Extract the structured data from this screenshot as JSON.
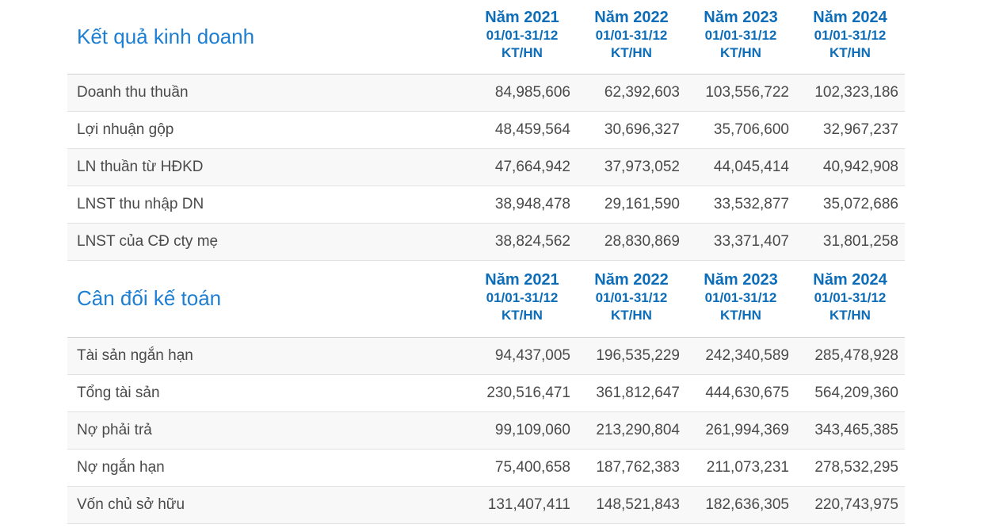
{
  "colors": {
    "section_title_blue": "#1e7fd2",
    "column_header_blue": "#0d6db8",
    "body_text": "#4a4a4a",
    "row_stripe": "#f8f8f8",
    "divider": "#e2e2e2"
  },
  "tables": [
    {
      "title": "Kết quả kinh doanh",
      "columns": [
        {
          "year": "Năm 2021",
          "period": "01/01-31/12",
          "basis": "KT/HN"
        },
        {
          "year": "Năm 2022",
          "period": "01/01-31/12",
          "basis": "KT/HN"
        },
        {
          "year": "Năm 2023",
          "period": "01/01-31/12",
          "basis": "KT/HN"
        },
        {
          "year": "Năm 2024",
          "period": "01/01-31/12",
          "basis": "KT/HN"
        }
      ],
      "rows": [
        {
          "label": "Doanh thu thuần",
          "values": [
            "84,985,606",
            "62,392,603",
            "103,556,722",
            "102,323,186"
          ]
        },
        {
          "label": "Lợi nhuận gộp",
          "values": [
            "48,459,564",
            "30,696,327",
            "35,706,600",
            "32,967,237"
          ]
        },
        {
          "label": "LN thuần từ HĐKD",
          "values": [
            "47,664,942",
            "37,973,052",
            "44,045,414",
            "40,942,908"
          ]
        },
        {
          "label": "LNST thu nhập DN",
          "values": [
            "38,948,478",
            "29,161,590",
            "33,532,877",
            "35,072,686"
          ]
        },
        {
          "label": "LNST của CĐ cty mẹ",
          "values": [
            "38,824,562",
            "28,830,869",
            "33,371,407",
            "31,801,258"
          ]
        }
      ]
    },
    {
      "title": "Cân đối kế toán",
      "columns": [
        {
          "year": "Năm 2021",
          "period": "01/01-31/12",
          "basis": "KT/HN"
        },
        {
          "year": "Năm 2022",
          "period": "01/01-31/12",
          "basis": "KT/HN"
        },
        {
          "year": "Năm 2023",
          "period": "01/01-31/12",
          "basis": "KT/HN"
        },
        {
          "year": "Năm 2024",
          "period": "01/01-31/12",
          "basis": "KT/HN"
        }
      ],
      "rows": [
        {
          "label": "Tài sản ngắn hạn",
          "values": [
            "94,437,005",
            "196,535,229",
            "242,340,589",
            "285,478,928"
          ]
        },
        {
          "label": "Tổng tài sản",
          "values": [
            "230,516,471",
            "361,812,647",
            "444,630,675",
            "564,209,360"
          ]
        },
        {
          "label": "Nợ phải trả",
          "values": [
            "99,109,060",
            "213,290,804",
            "261,994,369",
            "343,465,385"
          ]
        },
        {
          "label": "Nợ ngắn hạn",
          "values": [
            "75,400,658",
            "187,762,383",
            "211,073,231",
            "278,532,295"
          ]
        },
        {
          "label": "Vốn chủ sở hữu",
          "values": [
            "131,407,411",
            "148,521,843",
            "182,636,305",
            "220,743,975"
          ]
        }
      ]
    }
  ]
}
